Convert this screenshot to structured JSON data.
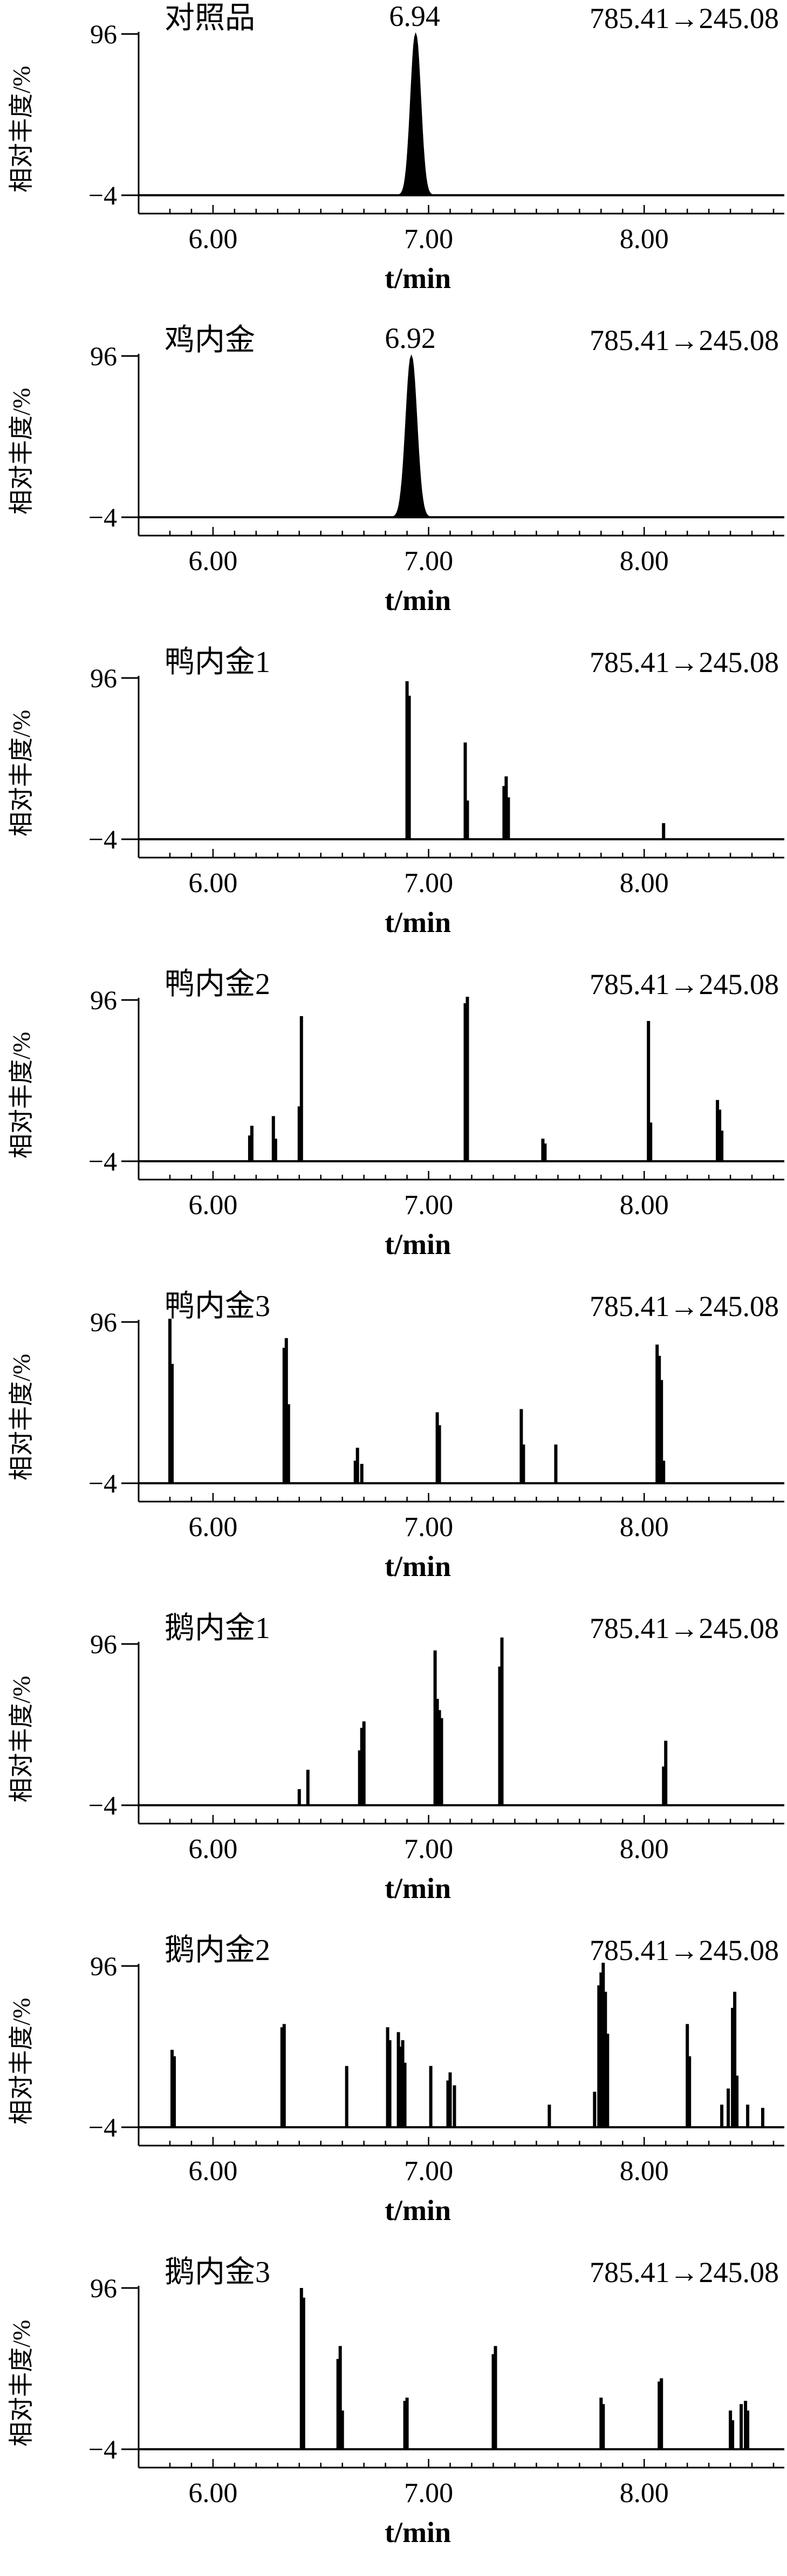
{
  "chart_data": [
    {
      "type": "line",
      "title": "对照品",
      "transition": "785.41→245.08",
      "ylabel": "相对丰度/%",
      "xlabel": "t/min",
      "xlim": [
        5.75,
        8.65
      ],
      "ylim": [
        -4,
        96
      ],
      "x_ticks": [
        "6.00",
        "7.00",
        "8.00"
      ],
      "y_ticks": [
        "96",
        "−4"
      ],
      "peak_label": "6.94",
      "peak_label_x": 6.94,
      "peaks": [
        {
          "x": 6.94,
          "y": 96,
          "w": 0.05,
          "filled": true
        }
      ]
    },
    {
      "type": "line",
      "title": "鸡内金",
      "transition": "785.41→245.08",
      "ylabel": "相对丰度/%",
      "xlabel": "t/min",
      "xlim": [
        5.75,
        8.65
      ],
      "ylim": [
        -4,
        96
      ],
      "x_ticks": [
        "6.00",
        "7.00",
        "8.00"
      ],
      "y_ticks": [
        "96",
        "−4"
      ],
      "peak_label": "6.92",
      "peak_label_x": 6.92,
      "peaks": [
        {
          "x": 6.92,
          "y": 96,
          "w": 0.055,
          "filled": true
        }
      ]
    },
    {
      "type": "line",
      "title": "鸭内金1",
      "transition": "785.41→245.08",
      "ylabel": "相对丰度/%",
      "xlabel": "t/min",
      "xlim": [
        5.75,
        8.65
      ],
      "ylim": [
        -4,
        96
      ],
      "x_ticks": [
        "6.00",
        "7.00",
        "8.00"
      ],
      "y_ticks": [
        "96",
        "−4"
      ],
      "peaks": [
        {
          "x": 6.9,
          "y": 94
        },
        {
          "x": 6.91,
          "y": 85
        },
        {
          "x": 7.17,
          "y": 56
        },
        {
          "x": 7.18,
          "y": 20
        },
        {
          "x": 7.35,
          "y": 29
        },
        {
          "x": 7.36,
          "y": 35
        },
        {
          "x": 7.37,
          "y": 22
        },
        {
          "x": 8.09,
          "y": 6
        }
      ]
    },
    {
      "type": "line",
      "title": "鸭内金2",
      "transition": "785.41→245.08",
      "ylabel": "相对丰度/%",
      "xlabel": "t/min",
      "xlim": [
        5.75,
        8.65
      ],
      "ylim": [
        -4,
        96
      ],
      "x_ticks": [
        "6.00",
        "7.00",
        "8.00"
      ],
      "y_ticks": [
        "96",
        "−4"
      ],
      "peaks": [
        {
          "x": 6.17,
          "y": 12
        },
        {
          "x": 6.18,
          "y": 18
        },
        {
          "x": 6.28,
          "y": 24
        },
        {
          "x": 6.29,
          "y": 10
        },
        {
          "x": 6.4,
          "y": 30
        },
        {
          "x": 6.41,
          "y": 86
        },
        {
          "x": 7.17,
          "y": 94
        },
        {
          "x": 7.18,
          "y": 98
        },
        {
          "x": 7.53,
          "y": 10
        },
        {
          "x": 7.54,
          "y": 7
        },
        {
          "x": 8.02,
          "y": 83
        },
        {
          "x": 8.03,
          "y": 20
        },
        {
          "x": 8.34,
          "y": 34
        },
        {
          "x": 8.35,
          "y": 28
        },
        {
          "x": 8.36,
          "y": 15
        }
      ]
    },
    {
      "type": "line",
      "title": "鸭内金3",
      "transition": "785.41→245.08",
      "ylabel": "相对丰度/%",
      "xlabel": "t/min",
      "xlim": [
        5.75,
        8.65
      ],
      "ylim": [
        -4,
        96
      ],
      "x_ticks": [
        "6.00",
        "7.00",
        "8.00"
      ],
      "y_ticks": [
        "96",
        "−4"
      ],
      "peaks": [
        {
          "x": 5.8,
          "y": 98
        },
        {
          "x": 5.81,
          "y": 70
        },
        {
          "x": 6.33,
          "y": 80
        },
        {
          "x": 6.34,
          "y": 86
        },
        {
          "x": 6.35,
          "y": 45
        },
        {
          "x": 6.66,
          "y": 10
        },
        {
          "x": 6.67,
          "y": 18
        },
        {
          "x": 6.69,
          "y": 8
        },
        {
          "x": 7.04,
          "y": 40
        },
        {
          "x": 7.05,
          "y": 32
        },
        {
          "x": 7.43,
          "y": 42
        },
        {
          "x": 7.44,
          "y": 20
        },
        {
          "x": 7.59,
          "y": 20
        },
        {
          "x": 8.06,
          "y": 82
        },
        {
          "x": 8.07,
          "y": 75
        },
        {
          "x": 8.08,
          "y": 60
        },
        {
          "x": 8.09,
          "y": 10
        }
      ]
    },
    {
      "type": "line",
      "title": "鹅内金1",
      "transition": "785.41→245.08",
      "ylabel": "相对丰度/%",
      "xlabel": "t/min",
      "xlim": [
        5.75,
        8.65
      ],
      "ylim": [
        -4,
        96
      ],
      "x_ticks": [
        "6.00",
        "7.00",
        "8.00"
      ],
      "y_ticks": [
        "96",
        "−4"
      ],
      "peaks": [
        {
          "x": 6.4,
          "y": 6
        },
        {
          "x": 6.44,
          "y": 18
        },
        {
          "x": 6.68,
          "y": 30
        },
        {
          "x": 6.69,
          "y": 44
        },
        {
          "x": 6.7,
          "y": 48
        },
        {
          "x": 7.03,
          "y": 92
        },
        {
          "x": 7.04,
          "y": 62
        },
        {
          "x": 7.05,
          "y": 55
        },
        {
          "x": 7.06,
          "y": 50
        },
        {
          "x": 7.33,
          "y": 82
        },
        {
          "x": 7.34,
          "y": 100
        },
        {
          "x": 8.09,
          "y": 20
        },
        {
          "x": 8.1,
          "y": 36
        }
      ]
    },
    {
      "type": "line",
      "title": "鹅内金2",
      "transition": "785.41→245.08",
      "ylabel": "相对丰度/%",
      "xlabel": "t/min",
      "xlim": [
        5.75,
        8.65
      ],
      "ylim": [
        -4,
        96
      ],
      "x_ticks": [
        "6.00",
        "7.00",
        "8.00"
      ],
      "y_ticks": [
        "96",
        "−4"
      ],
      "peaks": [
        {
          "x": 5.81,
          "y": 44
        },
        {
          "x": 5.82,
          "y": 40
        },
        {
          "x": 6.32,
          "y": 58
        },
        {
          "x": 6.33,
          "y": 60
        },
        {
          "x": 6.62,
          "y": 34
        },
        {
          "x": 6.81,
          "y": 58
        },
        {
          "x": 6.82,
          "y": 50
        },
        {
          "x": 6.86,
          "y": 55
        },
        {
          "x": 6.87,
          "y": 46
        },
        {
          "x": 6.88,
          "y": 50
        },
        {
          "x": 6.89,
          "y": 36
        },
        {
          "x": 7.01,
          "y": 34
        },
        {
          "x": 7.09,
          "y": 25
        },
        {
          "x": 7.1,
          "y": 30
        },
        {
          "x": 7.12,
          "y": 22
        },
        {
          "x": 7.56,
          "y": 10
        },
        {
          "x": 7.77,
          "y": 18
        },
        {
          "x": 7.79,
          "y": 84
        },
        {
          "x": 7.8,
          "y": 92
        },
        {
          "x": 7.81,
          "y": 98
        },
        {
          "x": 7.82,
          "y": 80
        },
        {
          "x": 7.83,
          "y": 54
        },
        {
          "x": 8.2,
          "y": 60
        },
        {
          "x": 8.21,
          "y": 40
        },
        {
          "x": 8.36,
          "y": 10
        },
        {
          "x": 8.39,
          "y": 20
        },
        {
          "x": 8.41,
          "y": 70
        },
        {
          "x": 8.42,
          "y": 80
        },
        {
          "x": 8.43,
          "y": 28
        },
        {
          "x": 8.48,
          "y": 10
        },
        {
          "x": 8.55,
          "y": 8
        }
      ]
    },
    {
      "type": "line",
      "title": "鹅内金3",
      "transition": "785.41→245.08",
      "ylabel": "相对丰度/%",
      "xlabel": "t/min",
      "xlim": [
        5.75,
        8.65
      ],
      "ylim": [
        -4,
        96
      ],
      "x_ticks": [
        "6.00",
        "7.00",
        "8.00"
      ],
      "y_ticks": [
        "96",
        "−4"
      ],
      "peaks": [
        {
          "x": 6.41,
          "y": 96
        },
        {
          "x": 6.42,
          "y": 90
        },
        {
          "x": 6.58,
          "y": 52
        },
        {
          "x": 6.59,
          "y": 60
        },
        {
          "x": 6.6,
          "y": 20
        },
        {
          "x": 6.89,
          "y": 26
        },
        {
          "x": 6.9,
          "y": 28
        },
        {
          "x": 7.3,
          "y": 55
        },
        {
          "x": 7.31,
          "y": 60
        },
        {
          "x": 7.8,
          "y": 28
        },
        {
          "x": 7.81,
          "y": 24
        },
        {
          "x": 8.07,
          "y": 38
        },
        {
          "x": 8.08,
          "y": 40
        },
        {
          "x": 8.4,
          "y": 20
        },
        {
          "x": 8.41,
          "y": 14
        },
        {
          "x": 8.45,
          "y": 24
        },
        {
          "x": 8.47,
          "y": 26
        },
        {
          "x": 8.48,
          "y": 20
        }
      ]
    }
  ]
}
